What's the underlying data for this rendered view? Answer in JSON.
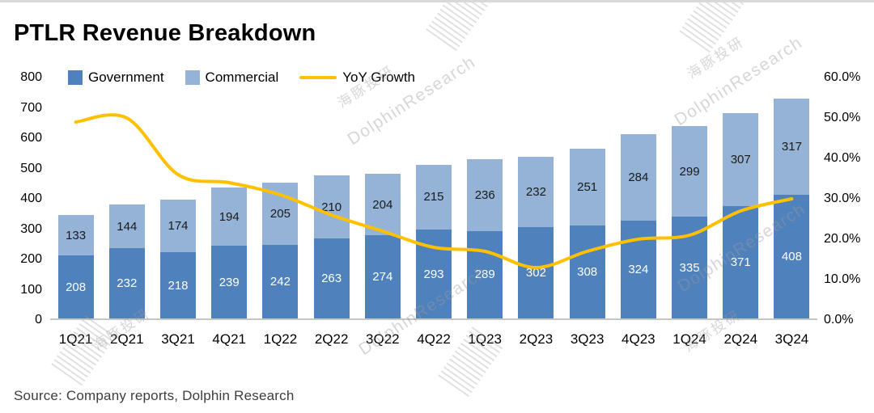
{
  "title": "PTLR Revenue Breakdown",
  "source": "Source:  Company reports, Dolphin Research",
  "legend": [
    "Government",
    "Commercial",
    "YoY Growth"
  ],
  "watermark": {
    "text_cn": "海豚投研",
    "text_en": "DolphinResearch"
  },
  "colors": {
    "government": "#4f81bd",
    "commercial": "#95b3d7",
    "yoy_line": "#ffc000"
  },
  "chart_data": {
    "type": "bar",
    "stacked": true,
    "title": "PTLR Revenue Breakdown",
    "categories": [
      "1Q21",
      "2Q21",
      "3Q21",
      "4Q21",
      "1Q22",
      "2Q22",
      "3Q22",
      "4Q22",
      "1Q23",
      "2Q23",
      "3Q23",
      "4Q23",
      "1Q24",
      "2Q24",
      "3Q24"
    ],
    "series": [
      {
        "name": "Government",
        "values": [
          208,
          232,
          218,
          239,
          242,
          263,
          274,
          293,
          289,
          302,
          308,
          324,
          335,
          371,
          408
        ],
        "color": "#4f81bd",
        "label_color": "#ffffff"
      },
      {
        "name": "Commercial",
        "values": [
          133,
          144,
          174,
          194,
          205,
          210,
          204,
          215,
          236,
          232,
          251,
          284,
          299,
          307,
          317
        ],
        "color": "#95b3d7",
        "label_color": "#1a1a1a"
      }
    ],
    "line_series": {
      "name": "YoY Growth",
      "axis": "right",
      "values_percent": [
        49,
        50,
        36,
        34,
        31,
        26,
        22,
        18,
        17,
        13,
        17,
        20,
        21,
        27,
        30
      ],
      "color": "#ffc000"
    },
    "left_axis": {
      "min": 0,
      "max": 800,
      "step": 100
    },
    "right_axis": {
      "min": 0,
      "max": 60,
      "step": 10,
      "tick_labels": [
        "0.0%",
        "10.0%",
        "20.0%",
        "30.0%",
        "40.0%",
        "50.0%",
        "60.0%"
      ]
    },
    "grid": false,
    "legend_position": "top-left"
  }
}
